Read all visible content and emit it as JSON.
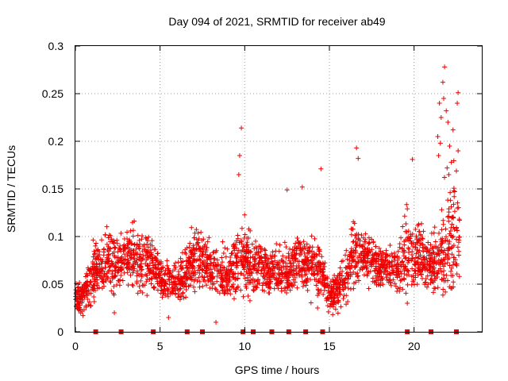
{
  "chart_data": {
    "type": "scatter",
    "title": "Day 094 of 2021, SRMTID for receiver ab49",
    "xlabel": "GPS time / hours",
    "ylabel": "SRMTID / TECUs",
    "xlim": [
      0,
      24
    ],
    "ylim": [
      0,
      0.3
    ],
    "x_ticks": [
      "0",
      "5",
      "10",
      "15",
      "20"
    ],
    "x_tick_values": [
      0,
      5,
      10,
      15,
      20
    ],
    "y_ticks": [
      "0",
      "0.05",
      "0.1",
      "0.15",
      "0.2",
      "0.25",
      "0.3"
    ],
    "y_tick_values": [
      0,
      0.05,
      0.1,
      0.15,
      0.2,
      0.25,
      0.3
    ],
    "grid": true,
    "marker": "plus",
    "color": "#ee0000",
    "n_points_approx": 2600,
    "envelope_hours": [
      0,
      0.5,
      1,
      1.5,
      2,
      2.5,
      3,
      3.5,
      4,
      4.5,
      5,
      5.5,
      6,
      6.5,
      7,
      7.5,
      8,
      8.5,
      9,
      9.5,
      10,
      10.5,
      11,
      11.5,
      12,
      12.5,
      13,
      13.5,
      14,
      14.5,
      15,
      15.5,
      16,
      16.5,
      17,
      17.5,
      18,
      18.5,
      19,
      19.5,
      20,
      20.5,
      21,
      21.5,
      22,
      22.5
    ],
    "envelope_median": [
      0.035,
      0.04,
      0.06,
      0.07,
      0.075,
      0.07,
      0.08,
      0.075,
      0.07,
      0.075,
      0.055,
      0.055,
      0.05,
      0.06,
      0.08,
      0.075,
      0.065,
      0.06,
      0.06,
      0.07,
      0.08,
      0.065,
      0.07,
      0.06,
      0.065,
      0.06,
      0.075,
      0.07,
      0.07,
      0.065,
      0.04,
      0.045,
      0.06,
      0.085,
      0.08,
      0.075,
      0.07,
      0.07,
      0.065,
      0.085,
      0.08,
      0.08,
      0.07,
      0.075,
      0.1,
      0.1
    ],
    "envelope_spread": [
      0.012,
      0.014,
      0.02,
      0.022,
      0.025,
      0.022,
      0.025,
      0.025,
      0.022,
      0.02,
      0.015,
      0.015,
      0.015,
      0.02,
      0.022,
      0.025,
      0.02,
      0.02,
      0.022,
      0.025,
      0.03,
      0.022,
      0.02,
      0.018,
      0.02,
      0.02,
      0.022,
      0.02,
      0.022,
      0.022,
      0.012,
      0.015,
      0.02,
      0.028,
      0.025,
      0.02,
      0.018,
      0.02,
      0.022,
      0.03,
      0.028,
      0.025,
      0.022,
      0.03,
      0.05,
      0.05
    ],
    "outliers": [
      {
        "x": 9.8,
        "y": 0.214
      },
      {
        "x": 9.7,
        "y": 0.185
      },
      {
        "x": 9.65,
        "y": 0.165
      },
      {
        "x": 14.5,
        "y": 0.171
      },
      {
        "x": 16.6,
        "y": 0.193
      },
      {
        "x": 16.7,
        "y": 0.182
      },
      {
        "x": 19.9,
        "y": 0.181
      },
      {
        "x": 21.8,
        "y": 0.278
      },
      {
        "x": 21.7,
        "y": 0.262
      },
      {
        "x": 21.75,
        "y": 0.245
      },
      {
        "x": 22.6,
        "y": 0.251
      },
      {
        "x": 22.55,
        "y": 0.24
      },
      {
        "x": 21.5,
        "y": 0.24
      },
      {
        "x": 21.9,
        "y": 0.232
      },
      {
        "x": 21.6,
        "y": 0.225
      },
      {
        "x": 22.0,
        "y": 0.22
      },
      {
        "x": 22.3,
        "y": 0.212
      },
      {
        "x": 21.4,
        "y": 0.205
      },
      {
        "x": 21.55,
        "y": 0.198
      },
      {
        "x": 22.1,
        "y": 0.195
      },
      {
        "x": 22.6,
        "y": 0.19
      },
      {
        "x": 21.45,
        "y": 0.185
      },
      {
        "x": 22.2,
        "y": 0.178
      },
      {
        "x": 21.95,
        "y": 0.172
      },
      {
        "x": 22.05,
        "y": 0.165
      },
      {
        "x": 12.5,
        "y": 0.149
      },
      {
        "x": 13.4,
        "y": 0.152
      },
      {
        "x": 8.3,
        "y": 0.01
      },
      {
        "x": 2.3,
        "y": 0.02
      },
      {
        "x": 5.5,
        "y": 0.015
      },
      {
        "x": 14.3,
        "y": 0.025
      },
      {
        "x": 15.2,
        "y": 0.018
      },
      {
        "x": 19.6,
        "y": 0.03
      }
    ],
    "cycle_slip_markers_hours": [
      1.2,
      2.7,
      4.6,
      6.6,
      7.5,
      9.9,
      10.5,
      11.6,
      12.6,
      13.6,
      14.6,
      19.6,
      21.0,
      22.5
    ],
    "marker_y": 0
  }
}
